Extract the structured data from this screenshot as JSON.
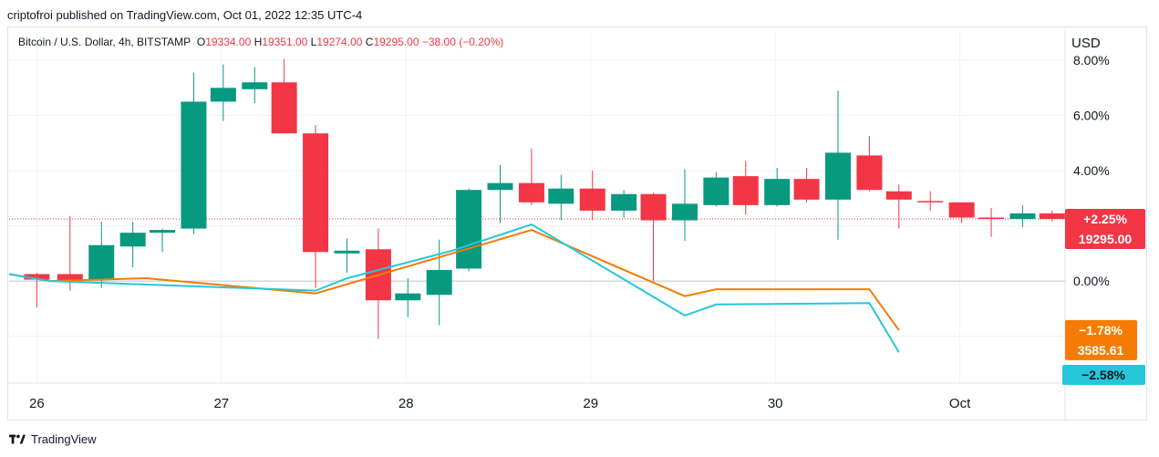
{
  "header": {
    "publish_line": "criptofroi published on TradingView.com, Oct 01, 2022 12:35 UTC-4"
  },
  "legend": {
    "symbol": "Bitcoin / U.S. Dollar, 4h, BITSTAMP",
    "o_label": "O",
    "o_value": "19334.00",
    "h_label": "H",
    "h_value": "19351.00",
    "l_label": "L",
    "l_value": "19274.00",
    "c_label": "C",
    "c_value": "19295.00",
    "change": "−38.00 (−0.20%)"
  },
  "footer": {
    "brand": "TradingView"
  },
  "colors": {
    "up": "#089981",
    "down": "#f23645",
    "orange": "#f57c00",
    "cyan": "#26c6da",
    "grid": "#f0f3fa"
  },
  "chart_data": {
    "type": "candlestick",
    "currency_label": "USD",
    "y_scale": "percent",
    "y_ticks": [
      "8.00%",
      "6.00%",
      "4.00%",
      "0.00%"
    ],
    "y_tick_values": [
      8,
      6,
      4,
      0
    ],
    "x_ticks": [
      "26",
      "27",
      "28",
      "29",
      "30",
      "Oct"
    ],
    "x_tick_values": [
      0.05,
      1.05,
      2.05,
      3.05,
      4.05,
      5.05
    ],
    "ylim": [
      -3.7,
      8.2
    ],
    "xlim": [
      -0.1,
      5.62
    ],
    "candles_units": "percent change from first open",
    "candles": [
      {
        "x": 0.05,
        "o": 0.25,
        "h": 0.3,
        "l": -0.95,
        "c": 0.05
      },
      {
        "x": 0.23,
        "o": 0.25,
        "h": 2.35,
        "l": -0.35,
        "c": 0.0
      },
      {
        "x": 0.4,
        "o": 0.05,
        "h": 2.15,
        "l": -0.25,
        "c": 1.3
      },
      {
        "x": 0.57,
        "o": 1.25,
        "h": 2.15,
        "l": 0.5,
        "c": 1.75
      },
      {
        "x": 0.73,
        "o": 1.75,
        "h": 1.9,
        "l": 1.05,
        "c": 1.85
      },
      {
        "x": 0.9,
        "o": 1.9,
        "h": 7.55,
        "l": 1.7,
        "c": 6.5
      },
      {
        "x": 1.06,
        "o": 6.5,
        "h": 7.85,
        "l": 5.8,
        "c": 7.0
      },
      {
        "x": 1.23,
        "o": 6.95,
        "h": 7.75,
        "l": 6.45,
        "c": 7.2
      },
      {
        "x": 1.39,
        "o": 7.2,
        "h": 8.05,
        "l": 5.35,
        "c": 5.35
      },
      {
        "x": 1.56,
        "o": 5.35,
        "h": 5.65,
        "l": -0.25,
        "c": 1.05
      },
      {
        "x": 1.73,
        "o": 1.0,
        "h": 1.55,
        "l": 0.3,
        "c": 1.1
      },
      {
        "x": 1.9,
        "o": 1.15,
        "h": 1.9,
        "l": -2.1,
        "c": -0.7
      },
      {
        "x": 2.06,
        "o": -0.7,
        "h": 0.1,
        "l": -1.3,
        "c": -0.45
      },
      {
        "x": 2.23,
        "o": -0.5,
        "h": 1.5,
        "l": -1.6,
        "c": 0.4
      },
      {
        "x": 2.39,
        "o": 0.45,
        "h": 3.35,
        "l": 0.35,
        "c": 3.3
      },
      {
        "x": 2.56,
        "o": 3.3,
        "h": 4.2,
        "l": 2.1,
        "c": 3.55
      },
      {
        "x": 2.73,
        "o": 3.55,
        "h": 4.8,
        "l": 2.75,
        "c": 2.85
      },
      {
        "x": 2.89,
        "o": 2.8,
        "h": 3.85,
        "l": 2.2,
        "c": 3.35
      },
      {
        "x": 3.06,
        "o": 3.35,
        "h": 4.0,
        "l": 2.2,
        "c": 2.55
      },
      {
        "x": 3.23,
        "o": 2.55,
        "h": 3.3,
        "l": 2.3,
        "c": 3.15
      },
      {
        "x": 3.39,
        "o": 3.15,
        "h": 3.2,
        "l": 0.0,
        "c": 2.2
      },
      {
        "x": 3.56,
        "o": 2.2,
        "h": 4.05,
        "l": 1.45,
        "c": 2.8
      },
      {
        "x": 3.73,
        "o": 2.75,
        "h": 3.95,
        "l": 2.7,
        "c": 3.75
      },
      {
        "x": 3.89,
        "o": 3.8,
        "h": 4.35,
        "l": 2.4,
        "c": 2.75
      },
      {
        "x": 4.06,
        "o": 2.75,
        "h": 4.1,
        "l": 2.7,
        "c": 3.7
      },
      {
        "x": 4.22,
        "o": 3.7,
        "h": 4.1,
        "l": 2.85,
        "c": 2.95
      },
      {
        "x": 4.39,
        "o": 2.95,
        "h": 6.9,
        "l": 1.5,
        "c": 4.65
      },
      {
        "x": 4.56,
        "o": 4.55,
        "h": 5.25,
        "l": 3.25,
        "c": 3.3
      },
      {
        "x": 4.72,
        "o": 3.25,
        "h": 3.5,
        "l": 1.9,
        "c": 2.95
      },
      {
        "x": 4.89,
        "o": 2.9,
        "h": 3.25,
        "l": 2.55,
        "c": 2.85
      },
      {
        "x": 5.06,
        "o": 2.85,
        "h": 2.85,
        "l": 2.1,
        "c": 2.3
      },
      {
        "x": 5.22,
        "o": 2.3,
        "h": 2.65,
        "l": 1.6,
        "c": 2.25
      },
      {
        "x": 5.39,
        "o": 2.25,
        "h": 2.75,
        "l": 1.95,
        "c": 2.45
      },
      {
        "x": 5.55,
        "o": 2.45,
        "h": 2.55,
        "l": 2.15,
        "c": 2.25
      }
    ],
    "series": [
      {
        "color": "#f57c00",
        "x": [
          -0.1,
          0.12,
          0.64,
          1.56,
          2.3,
          2.73,
          3.56,
          3.73,
          4.56,
          4.72
        ],
        "y": [
          0.25,
          0.0,
          0.1,
          -0.45,
          1.0,
          1.85,
          -0.55,
          -0.3,
          -0.3,
          -1.78
        ]
      },
      {
        "color": "#26c6da",
        "x": [
          -0.1,
          0.12,
          1.56,
          1.73,
          2.3,
          2.73,
          3.56,
          3.73,
          4.56,
          4.72
        ],
        "y": [
          0.25,
          0.0,
          -0.35,
          0.1,
          1.1,
          2.05,
          -1.25,
          -0.85,
          -0.8,
          -2.58
        ]
      }
    ],
    "last_price_line": 2.25,
    "badges": {
      "main_pct": "+2.25%",
      "main_price": "19295.00",
      "orange_pct": "−1.78%",
      "orange_value": "3585.61",
      "cyan_pct": "−2.58%"
    }
  }
}
